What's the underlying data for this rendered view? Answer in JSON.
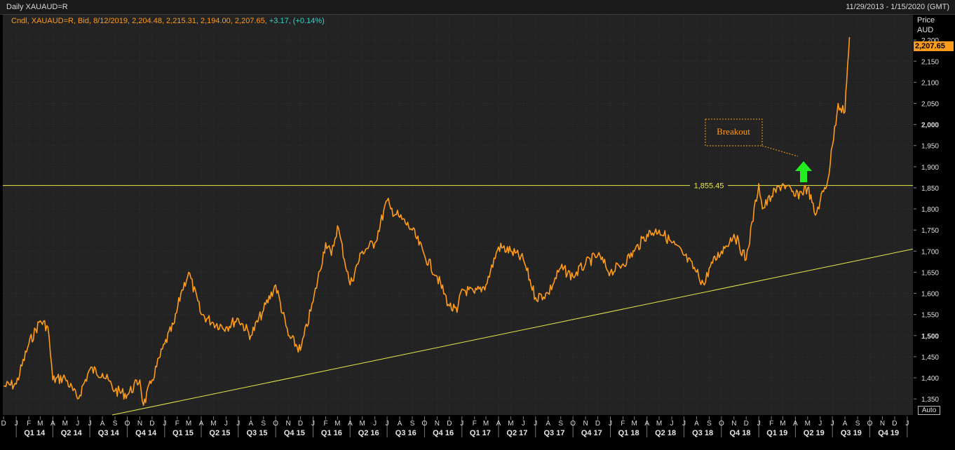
{
  "header": {
    "title": "Daily XAUAUD=R",
    "date_range": "11/29/2013 - 1/15/2020 (GMT)"
  },
  "legend": {
    "series_info": "Cndl, XAUAUD=R, Bid, 8/12/2019, 2,204.48, 2,215.31, 2,194.00, 2,207.65,",
    "change": "+3.17, (+0.14%)"
  },
  "y_axis": {
    "label_line1": "Price",
    "label_line2": "AUD",
    "last_price": "2,207.65",
    "auto_button": "Auto"
  },
  "colors": {
    "background": "#232323",
    "price_line": "#ff9b1a",
    "trend_lines": "#e8e84a",
    "arrow": "#22ee22",
    "annotation": "#ff9b1a"
  },
  "chart_data": {
    "type": "line",
    "title": "Daily XAUAUD=R",
    "ylabel": "Price AUD",
    "ylim": [
      1312,
      2260
    ],
    "xlim": [
      "2013-11-29",
      "2020-01-15"
    ],
    "y_ticks": [
      {
        "value": 1350,
        "label": "1,350"
      },
      {
        "value": 1400,
        "label": "1,400"
      },
      {
        "value": 1450,
        "label": "1,450"
      },
      {
        "value": 1500,
        "label": "1,500"
      },
      {
        "value": 1550,
        "label": "1,550"
      },
      {
        "value": 1600,
        "label": "1,600"
      },
      {
        "value": 1650,
        "label": "1,650"
      },
      {
        "value": 1700,
        "label": "1,700"
      },
      {
        "value": 1750,
        "label": "1,750"
      },
      {
        "value": 1800,
        "label": "1,800"
      },
      {
        "value": 1850,
        "label": "1,850"
      },
      {
        "value": 1900,
        "label": "1,900"
      },
      {
        "value": 1950,
        "label": "1,950"
      },
      {
        "value": 2000,
        "label": "2,000"
      },
      {
        "value": 2050,
        "label": "2,050"
      },
      {
        "value": 2100,
        "label": "2,100"
      },
      {
        "value": 2150,
        "label": "2,150"
      },
      {
        "value": 2200,
        "label": "2,200"
      }
    ],
    "month_ticks": [
      "D",
      "J",
      "F",
      "M",
      "A",
      "M",
      "J",
      "J",
      "A",
      "S",
      "O",
      "N",
      "D",
      "J",
      "F",
      "M",
      "A",
      "M",
      "J",
      "J",
      "A",
      "S",
      "O",
      "N",
      "D",
      "J",
      "F",
      "M",
      "A",
      "M",
      "J",
      "J",
      "A",
      "S",
      "O",
      "N",
      "D",
      "J",
      "F",
      "M",
      "A",
      "M",
      "J",
      "J",
      "A",
      "S",
      "O",
      "N",
      "D",
      "J",
      "F",
      "M",
      "A",
      "M",
      "J",
      "J",
      "A",
      "S",
      "O",
      "N",
      "D",
      "J",
      "F",
      "M",
      "A",
      "M",
      "J",
      "J",
      "A",
      "S",
      "O",
      "N",
      "D",
      "J"
    ],
    "quarter_labels": [
      "Q1 14",
      "Q2 14",
      "Q3 14",
      "Q4 14",
      "Q1 15",
      "Q2 15",
      "Q3 15",
      "Q4 15",
      "Q1 16",
      "Q2 16",
      "Q3 16",
      "Q4 16",
      "Q1 17",
      "Q2 17",
      "Q3 17",
      "Q4 17",
      "Q1 18",
      "Q2 18",
      "Q3 18",
      "Q4 18",
      "Q1 19",
      "Q2 19",
      "Q3 19",
      "Q4 19"
    ],
    "series": [
      {
        "x": [
          "2013-12-01",
          "2014-01-01",
          "2014-02-01",
          "2014-03-01",
          "2014-03-20",
          "2014-04-01",
          "2014-05-01",
          "2014-06-01",
          "2014-07-01",
          "2014-08-01",
          "2014-09-01",
          "2014-10-01",
          "2014-11-01",
          "2014-11-10",
          "2014-12-01",
          "2015-01-01",
          "2015-01-25",
          "2015-02-10",
          "2015-03-01",
          "2015-04-01",
          "2015-05-01",
          "2015-06-01",
          "2015-07-01",
          "2015-08-01",
          "2015-09-01",
          "2015-10-01",
          "2015-11-01",
          "2015-12-01",
          "2016-01-01",
          "2016-02-01",
          "2016-02-15",
          "2016-03-01",
          "2016-04-01",
          "2016-05-01",
          "2016-06-01",
          "2016-07-01",
          "2016-07-10",
          "2016-08-01",
          "2016-09-01",
          "2016-10-01",
          "2016-11-01",
          "2016-12-01",
          "2016-12-20",
          "2017-01-01",
          "2017-02-01",
          "2017-03-01",
          "2017-04-01",
          "2017-05-01",
          "2017-06-01",
          "2017-07-01",
          "2017-08-01",
          "2017-09-01",
          "2017-10-01",
          "2017-11-01",
          "2017-12-01",
          "2018-01-01",
          "2018-02-01",
          "2018-03-01",
          "2018-04-01",
          "2018-05-01",
          "2018-06-01",
          "2018-07-01",
          "2018-08-01",
          "2018-08-20",
          "2018-09-01",
          "2018-10-01",
          "2018-11-01",
          "2018-12-01",
          "2019-01-01",
          "2019-01-10",
          "2019-02-01",
          "2019-03-01",
          "2019-04-01",
          "2019-05-01",
          "2019-05-20",
          "2019-06-01",
          "2019-06-20",
          "2019-07-01",
          "2019-07-15",
          "2019-08-01",
          "2019-08-05",
          "2019-08-12"
        ],
        "values": [
          1380,
          1385,
          1480,
          1535,
          1520,
          1395,
          1400,
          1350,
          1420,
          1410,
          1370,
          1360,
          1395,
          1335,
          1395,
          1480,
          1530,
          1600,
          1650,
          1550,
          1530,
          1520,
          1540,
          1500,
          1560,
          1620,
          1500,
          1465,
          1580,
          1720,
          1690,
          1760,
          1620,
          1700,
          1720,
          1820,
          1800,
          1780,
          1750,
          1690,
          1640,
          1570,
          1555,
          1610,
          1600,
          1620,
          1710,
          1700,
          1680,
          1590,
          1600,
          1660,
          1640,
          1670,
          1690,
          1650,
          1670,
          1700,
          1740,
          1750,
          1720,
          1690,
          1650,
          1620,
          1660,
          1700,
          1740,
          1680,
          1860,
          1800,
          1830,
          1860,
          1830,
          1850,
          1785,
          1820,
          1870,
          1950,
          2050,
          2030,
          2100,
          2207
        ]
      }
    ],
    "horizontal_line": {
      "value": 1855.45,
      "label": "1,855.45"
    },
    "trend_line": {
      "from": {
        "x": "2014-08-25",
        "y": 1312
      },
      "to": {
        "x": "2020-01-15",
        "y": 1705
      }
    },
    "annotation": {
      "text": "Breakout"
    }
  }
}
